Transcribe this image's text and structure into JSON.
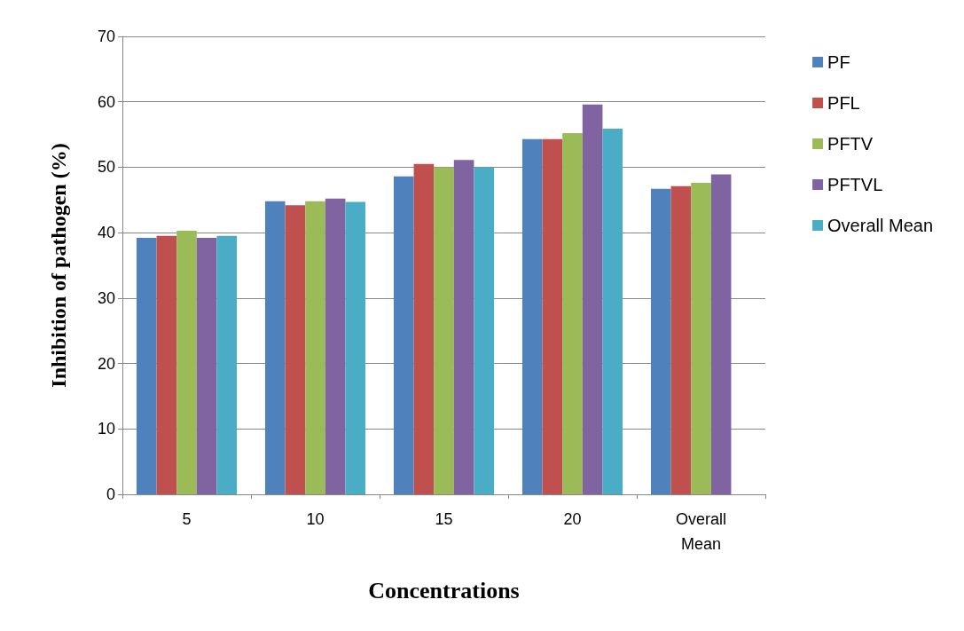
{
  "chart_data": {
    "type": "bar",
    "xlabel": "Concentrations",
    "ylabel": "Inhibition of pathogen (%)",
    "categories": [
      "5",
      "10",
      "15",
      "20",
      "Overall\nMean"
    ],
    "series": [
      {
        "name": "PF",
        "color": "#4f81bd",
        "values": [
          39.2,
          44.8,
          48.6,
          54.3,
          46.7
        ]
      },
      {
        "name": "PFL",
        "color": "#c0504d",
        "values": [
          39.5,
          44.2,
          50.5,
          54.3,
          47.1
        ]
      },
      {
        "name": "PFTV",
        "color": "#9bbb59",
        "values": [
          40.3,
          44.8,
          50.0,
          55.2,
          47.6
        ]
      },
      {
        "name": "PFTVL",
        "color": "#8064a2",
        "values": [
          39.2,
          45.2,
          51.1,
          59.6,
          48.9
        ]
      },
      {
        "name": "Overall Mean",
        "color": "#4bacc6",
        "values": [
          39.5,
          44.7,
          50.0,
          55.9,
          null
        ]
      }
    ],
    "ylim": [
      0,
      70
    ],
    "yticks": [
      0,
      10,
      20,
      30,
      40,
      50,
      60,
      70
    ],
    "grid": "y",
    "legend": "right"
  }
}
